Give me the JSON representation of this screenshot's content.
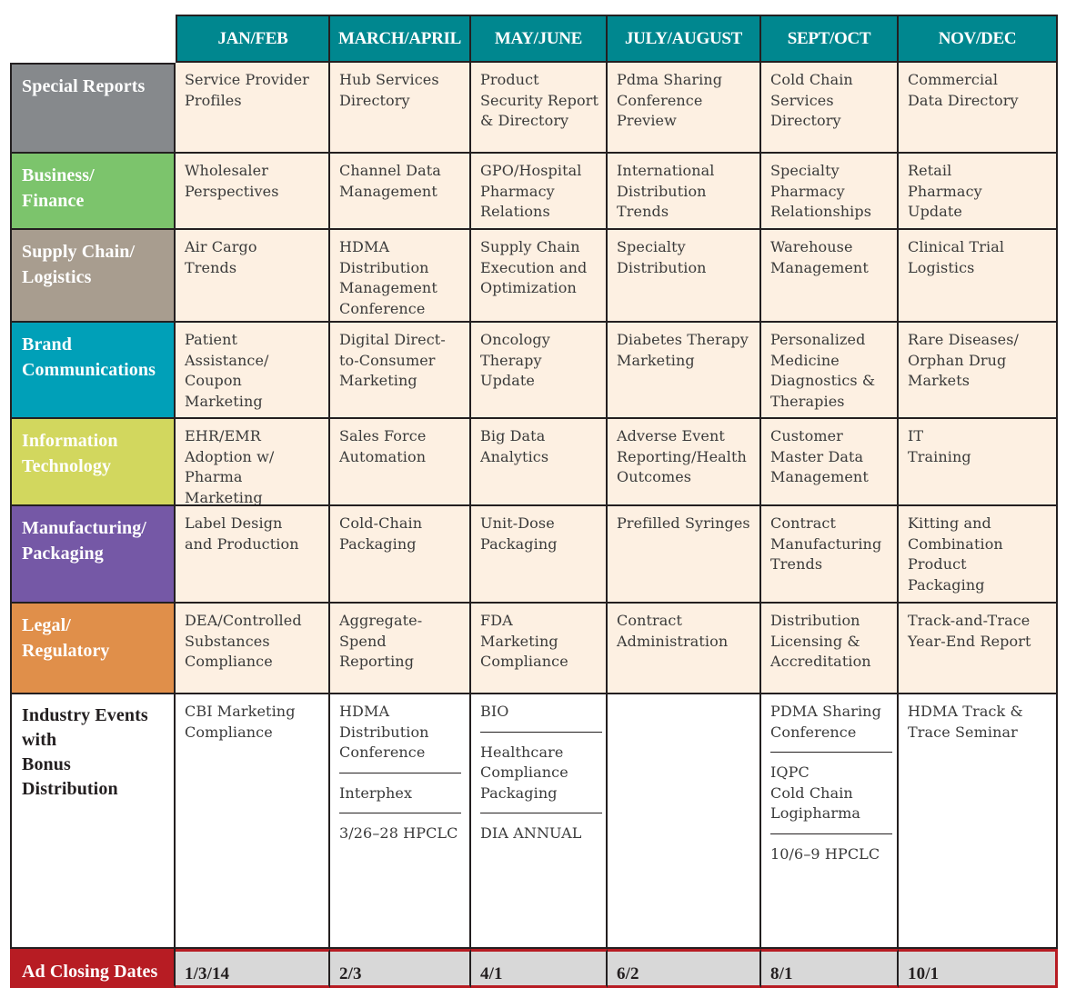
{
  "table": {
    "columns": [
      "JAN/FEB",
      "MARCH/APRIL",
      "MAY/JUNE",
      "JULY/AUGUST",
      "SEPT/OCT",
      "NOV/DEC"
    ],
    "rows": [
      {
        "label": "Special Reports",
        "color": "#86898c",
        "cells": [
          "Service Provider\nProfiles",
          "Hub Services\nDirectory",
          "Product\nSecurity Report\n& Directory",
          "Pdma Sharing\nConference\nPreview",
          "Cold Chain\nServices\nDirectory",
          "Commercial\nData Directory"
        ]
      },
      {
        "label": "Business/\nFinance",
        "color": "#7cc46c",
        "cells": [
          "Wholesaler\nPerspectives",
          "Channel Data\nManagement",
          "GPO/Hospital\nPharmacy\nRelations",
          "International\nDistribution\nTrends",
          "Specialty\nPharmacy\nRelationships",
          "Retail\nPharmacy\nUpdate"
        ]
      },
      {
        "label": "Supply Chain/\nLogistics",
        "color": "#a89d8f",
        "cells": [
          "Air Cargo\nTrends",
          "HDMA\nDistribution\nManagement\nConference",
          "Supply Chain\nExecution and\nOptimization",
          "Specialty\nDistribution",
          "Warehouse\nManagement",
          "Clinical Trial\nLogistics"
        ]
      },
      {
        "label": "Brand\nCommunications",
        "color": "#00a0b8",
        "cells": [
          "Patient\nAssistance/\nCoupon\nMarketing",
          "Digital Direct-\nto-Consumer\nMarketing",
          "Oncology\nTherapy\nUpdate",
          "Diabetes Therapy\nMarketing",
          "Personalized\nMedicine\nDiagnostics &\nTherapies",
          "Rare Diseases/\nOrphan Drug\nMarkets"
        ]
      },
      {
        "label": "Information\nTechnology",
        "color": "#d2d75e",
        "cells": [
          "EHR/EMR\nAdoption w/\nPharma Marketing",
          "Sales Force\nAutomation",
          "Big Data\nAnalytics",
          "Adverse Event\nReporting/Health\nOutcomes",
          "Customer\nMaster Data\nManagement",
          "IT\nTraining"
        ]
      },
      {
        "label": "Manufacturing/\nPackaging",
        "color": "#7558a6",
        "cells": [
          "Label Design\nand Production",
          "Cold-Chain\nPackaging",
          "Unit-Dose\nPackaging",
          "Prefilled Syringes",
          "Contract\nManufacturing\nTrends",
          "Kitting and\nCombination\nProduct\nPackaging"
        ]
      },
      {
        "label": "Legal/\nRegulatory",
        "color": "#e08f4a",
        "cells": [
          "DEA/Controlled\nSubstances\nCompliance",
          "Aggregate-\nSpend\nReporting",
          "FDA\nMarketing\nCompliance",
          "Contract\nAdministration",
          "Distribution\nLicensing &\nAccreditation",
          "Track-and-Trace\nYear-End Report"
        ]
      }
    ],
    "events": {
      "label": "Industry Events\nwith\nBonus\nDistribution",
      "cells": [
        [
          "CBI Marketing\nCompliance"
        ],
        [
          "HDMA\nDistribution\nConference",
          "Interphex",
          "3/26–28 HPCLC"
        ],
        [
          "BIO",
          "Healthcare\nCompliance\nPackaging",
          "DIA ANNUAL"
        ],
        [],
        [
          "PDMA Sharing\nConference",
          "IQPC\nCold Chain\nLogipharma",
          "10/6–9 HPCLC"
        ],
        [
          "HDMA Track &\nTrace Seminar"
        ]
      ]
    },
    "closing": {
      "label": "Ad Closing Dates",
      "dates": [
        "1/3/14",
        "2/3",
        "4/1",
        "6/2",
        "8/1",
        "10/1"
      ]
    }
  }
}
